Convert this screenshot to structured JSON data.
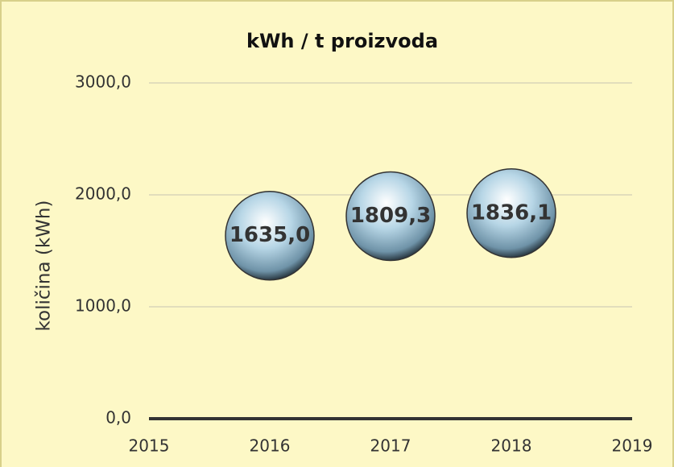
{
  "chart_data": {
    "type": "scatter",
    "title": "kWh / t proizvoda",
    "y_label": "količina (kWh)",
    "x": [
      2016,
      2017,
      2018
    ],
    "values": [
      1635.0,
      1809.3,
      1836.1
    ],
    "value_labels": [
      "1635,0",
      "1809,3",
      "1836,1"
    ],
    "xlim": [
      2015,
      2019
    ],
    "xticks": [
      2015,
      2016,
      2017,
      2018,
      2019
    ],
    "ylim": [
      0,
      3000
    ],
    "yticks": [
      {
        "value": 0,
        "label": "0,0"
      },
      {
        "value": 1000,
        "label": "1000,0"
      },
      {
        "value": 2000,
        "label": "2000,0"
      },
      {
        "value": 3000,
        "label": "3000,0"
      }
    ],
    "grid": true,
    "color": "#a9cbe0"
  }
}
